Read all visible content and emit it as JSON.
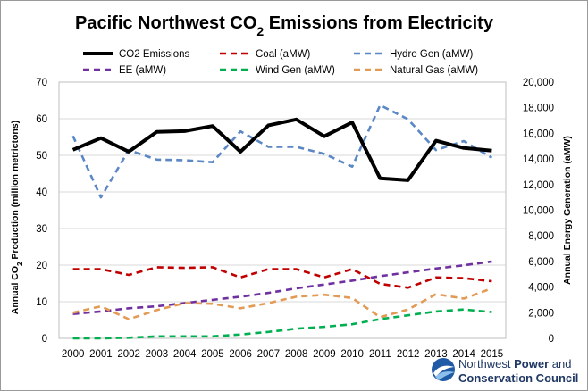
{
  "chart_data": {
    "type": "line",
    "title": "Pacific Northwest CO2 Emissions from Electricity",
    "ylabel_left": "Annual CO2 Production (million metrictons)",
    "ylabel_right": "Annual Energy Generation (aMW)",
    "x": [
      2000,
      2001,
      2002,
      2003,
      2004,
      2005,
      2006,
      2007,
      2008,
      2009,
      2010,
      2011,
      2012,
      2013,
      2014,
      2015
    ],
    "ylim_left": [
      0,
      70
    ],
    "yticks_left": [
      0,
      10,
      20,
      30,
      40,
      50,
      60,
      70
    ],
    "ylim_right": [
      0,
      20000
    ],
    "yticks_right": [
      "0",
      "2,000",
      "4,000",
      "6,000",
      "8,000",
      "10,000",
      "12,000",
      "14,000",
      "16,000",
      "18,000",
      "20,000"
    ],
    "grid": true,
    "legend_position": "top",
    "series": [
      {
        "name": "CO2 Emissions",
        "axis": "left",
        "color": "#000000",
        "style": "solid",
        "values": [
          51.5,
          54.7,
          51,
          56.4,
          56.6,
          58,
          51,
          58.2,
          59.8,
          55.2,
          59,
          43.7,
          43.2,
          54,
          52,
          51.3
        ]
      },
      {
        "name": "Coal (aMW)",
        "axis": "right",
        "color": "#c00000",
        "style": "dashed",
        "values": [
          5400,
          5400,
          4950,
          5550,
          5500,
          5550,
          4750,
          5400,
          5400,
          4750,
          5400,
          4250,
          3950,
          4750,
          4700,
          4450
        ]
      },
      {
        "name": "Hydro Gen (aMW)",
        "axis": "right",
        "color": "#5b87c5",
        "style": "dashed",
        "values": [
          15800,
          11000,
          14700,
          13950,
          13900,
          13750,
          16150,
          14950,
          14950,
          14400,
          13400,
          18200,
          17100,
          14700,
          15400,
          14100
        ]
      },
      {
        "name": "EE (aMW)",
        "axis": "right",
        "color": "#7030a0",
        "style": "dashed",
        "values": [
          1900,
          2100,
          2350,
          2500,
          2750,
          3000,
          3250,
          3550,
          3900,
          4200,
          4500,
          4850,
          5150,
          5450,
          5700,
          6000
        ]
      },
      {
        "name": "Wind Gen (aMW)",
        "axis": "right",
        "color": "#00b050",
        "style": "dashed",
        "values": [
          0,
          0,
          50,
          150,
          150,
          150,
          300,
          500,
          750,
          900,
          1100,
          1500,
          1800,
          2100,
          2250,
          2050
        ]
      },
      {
        "name": "Natural Gas (aMW)",
        "axis": "right",
        "color": "#e39a55",
        "style": "dashed",
        "values": [
          2000,
          2500,
          1500,
          2200,
          2750,
          2700,
          2350,
          2750,
          3250,
          3400,
          3150,
          1650,
          2250,
          3450,
          3100,
          3900
        ]
      }
    ]
  },
  "logo": {
    "line1_normal": "Northwest ",
    "line1_bold": "Power",
    "line1_end": " and",
    "line2": "Conservation Council"
  }
}
